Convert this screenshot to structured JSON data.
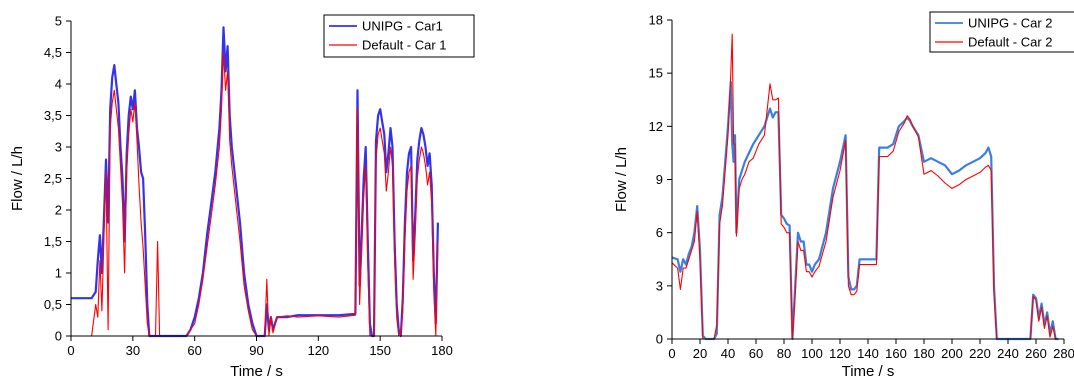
{
  "chart_data": [
    {
      "type": "line",
      "xlabel": "Time / s",
      "ylabel": "Flow / L/h",
      "xlim": [
        0,
        180
      ],
      "ylim": [
        0,
        5
      ],
      "x_ticks": [
        "0",
        "30",
        "60",
        "90",
        "120",
        "150",
        "180"
      ],
      "y_ticks": [
        "0",
        "0,5",
        "1",
        "1,5",
        "2",
        "2,5",
        "3",
        "3,5",
        "4",
        "4,5",
        "5"
      ],
      "grid": false,
      "legend_position": "top-right",
      "series": [
        {
          "name": "UNIPG - Car1",
          "color": "#3333ee",
          "x": [
            0,
            10,
            12,
            13,
            14,
            15,
            16,
            17,
            18,
            19,
            20,
            21,
            22,
            23,
            24,
            25,
            26,
            27,
            28,
            29,
            30,
            31,
            32,
            33,
            34,
            35,
            36,
            37,
            38,
            39,
            40,
            41,
            42,
            43,
            44,
            45,
            46,
            48,
            50,
            52,
            54,
            56,
            58,
            60,
            62,
            64,
            66,
            68,
            70,
            72,
            73,
            74,
            75,
            76,
            77,
            78,
            80,
            82,
            84,
            86,
            88,
            90,
            91,
            92,
            94,
            95,
            96,
            97,
            98,
            100,
            105,
            110,
            120,
            130,
            138,
            139,
            140,
            141,
            142,
            143,
            144,
            145,
            146,
            147,
            148,
            149,
            150,
            151,
            152,
            153,
            154,
            155,
            156,
            157,
            158,
            159,
            160,
            161,
            162,
            163,
            164,
            165,
            166,
            167,
            168,
            169,
            170,
            171,
            172,
            173,
            174,
            175,
            176,
            177,
            178
          ],
          "values": [
            0.6,
            0.6,
            0.7,
            1.2,
            1.6,
            1.0,
            1.9,
            2.8,
            1.8,
            3.6,
            4.1,
            4.3,
            4.0,
            3.7,
            3.0,
            2.5,
            1.5,
            2.9,
            3.5,
            3.8,
            3.6,
            3.9,
            3.3,
            3.0,
            2.6,
            2.5,
            1.6,
            0.5,
            0.0,
            0.0,
            0.0,
            0.0,
            0.0,
            0.0,
            0.0,
            0.0,
            0.0,
            0.0,
            0.0,
            0.0,
            0.0,
            0.0,
            0.1,
            0.3,
            0.6,
            1.0,
            1.6,
            2.1,
            2.6,
            3.3,
            3.9,
            4.9,
            4.2,
            4.6,
            3.5,
            3.0,
            2.4,
            1.8,
            1.0,
            0.5,
            0.2,
            0.0,
            0.0,
            0.0,
            0.0,
            0.5,
            0.1,
            0.3,
            0.1,
            0.3,
            0.3,
            0.33,
            0.33,
            0.33,
            0.35,
            3.9,
            0.8,
            1.6,
            2.5,
            3.0,
            1.5,
            0.2,
            0.0,
            0.0,
            3.1,
            3.5,
            3.6,
            3.4,
            3.2,
            2.6,
            2.9,
            3.3,
            3.0,
            1.5,
            0.5,
            0.1,
            0.0,
            0.6,
            1.8,
            2.6,
            2.9,
            3.0,
            1.2,
            1.9,
            2.8,
            3.1,
            3.3,
            3.2,
            3.0,
            2.7,
            2.9,
            2.4,
            1.0,
            0.2,
            1.8
          ]
        },
        {
          "name": "Default - Car 1",
          "color": "#ff0000",
          "x": [
            0,
            10,
            12,
            13,
            14,
            15,
            16,
            17,
            18,
            19,
            20,
            21,
            22,
            23,
            24,
            25,
            26,
            27,
            28,
            29,
            30,
            31,
            32,
            33,
            34,
            35,
            36,
            37,
            38,
            39,
            40,
            41,
            42,
            43,
            44,
            45,
            46,
            48,
            50,
            52,
            54,
            56,
            58,
            60,
            62,
            64,
            66,
            68,
            70,
            72,
            73,
            74,
            75,
            76,
            77,
            78,
            80,
            82,
            84,
            86,
            88,
            90,
            91,
            92,
            94,
            95,
            96,
            97,
            98,
            100,
            105,
            110,
            120,
            130,
            138,
            139,
            140,
            141,
            142,
            143,
            144,
            145,
            146,
            147,
            148,
            149,
            150,
            151,
            152,
            153,
            154,
            155,
            156,
            157,
            158,
            159,
            160,
            161,
            162,
            163,
            164,
            165,
            166,
            167,
            168,
            169,
            170,
            171,
            172,
            173,
            174,
            175,
            176,
            177,
            178
          ],
          "values": [
            0.0,
            0.0,
            0.5,
            0.3,
            1.2,
            0.4,
            1.6,
            2.6,
            0.1,
            3.3,
            3.7,
            3.9,
            3.6,
            3.3,
            2.7,
            2.1,
            1.0,
            2.6,
            3.2,
            3.6,
            3.4,
            3.7,
            3.1,
            2.4,
            1.8,
            1.4,
            0.8,
            0.2,
            0.0,
            0.0,
            0.0,
            0.0,
            1.5,
            0.0,
            0.0,
            0.0,
            0.0,
            0.0,
            0.0,
            0.0,
            0.0,
            0.0,
            0.1,
            0.2,
            0.5,
            0.9,
            1.4,
            1.9,
            2.4,
            3.0,
            3.6,
            4.5,
            3.9,
            4.2,
            3.1,
            2.7,
            2.1,
            1.5,
            0.8,
            0.4,
            0.1,
            0.0,
            0.0,
            0.0,
            0.0,
            0.9,
            0.0,
            0.3,
            0.05,
            0.3,
            0.32,
            0.3,
            0.32,
            0.3,
            0.33,
            3.6,
            0.5,
            1.3,
            2.2,
            2.7,
            1.1,
            0.0,
            0.0,
            0.0,
            2.8,
            3.2,
            3.3,
            3.1,
            2.9,
            2.3,
            2.6,
            3.0,
            2.7,
            1.2,
            0.3,
            0.0,
            0.0,
            0.4,
            1.5,
            2.3,
            2.6,
            2.7,
            0.9,
            1.6,
            2.5,
            2.8,
            3.0,
            2.9,
            2.7,
            2.4,
            2.6,
            2.1,
            0.7,
            0.0,
            1.5
          ]
        }
      ]
    },
    {
      "type": "line",
      "xlabel": "Time / s",
      "ylabel": "Flow / L/h",
      "xlim": [
        0,
        280
      ],
      "ylim": [
        0,
        18
      ],
      "x_ticks": [
        "0",
        "20",
        "40",
        "60",
        "80",
        "100",
        "120",
        "140",
        "160",
        "180",
        "200",
        "220",
        "240",
        "260",
        "280"
      ],
      "y_ticks": [
        "0",
        "3",
        "6",
        "9",
        "12",
        "15",
        "18"
      ],
      "grid": false,
      "legend_position": "top-right",
      "series": [
        {
          "name": "UNIPG - Car 2",
          "color": "#3a7fe0",
          "x": [
            0,
            4,
            6,
            8,
            10,
            12,
            14,
            16,
            18,
            20,
            22,
            24,
            26,
            28,
            30,
            32,
            34,
            36,
            38,
            40,
            42,
            43,
            44,
            45,
            46,
            48,
            50,
            52,
            55,
            58,
            62,
            66,
            70,
            72,
            74,
            76,
            78,
            80,
            82,
            84,
            86,
            88,
            90,
            92,
            94,
            96,
            98,
            100,
            102,
            105,
            110,
            115,
            120,
            124,
            126,
            128,
            130,
            132,
            134,
            138,
            142,
            146,
            148,
            150,
            154,
            158,
            162,
            166,
            168,
            170,
            172,
            176,
            180,
            185,
            190,
            195,
            200,
            205,
            210,
            215,
            220,
            224,
            226,
            228,
            230,
            232,
            234,
            236,
            240,
            244,
            248,
            252,
            254,
            256,
            258,
            260,
            262,
            264,
            266,
            268,
            270,
            272,
            274,
            276
          ],
          "values": [
            4.6,
            4.5,
            3.8,
            4.5,
            4.2,
            4.8,
            5.2,
            6.0,
            7.5,
            5.0,
            0.2,
            0.0,
            0.0,
            0.0,
            0.0,
            0.3,
            7.0,
            8.0,
            10.0,
            12.0,
            14.5,
            11.0,
            10.0,
            11.5,
            6.0,
            9.0,
            9.5,
            10.0,
            10.5,
            11.0,
            11.5,
            12.0,
            13.0,
            12.5,
            12.8,
            12.8,
            7.0,
            6.8,
            6.5,
            6.4,
            0.0,
            3.0,
            6.0,
            5.5,
            5.5,
            4.2,
            4.2,
            3.8,
            4.2,
            4.5,
            6.0,
            8.5,
            10.0,
            11.5,
            3.5,
            2.8,
            2.8,
            3.0,
            4.5,
            4.5,
            4.5,
            4.5,
            10.8,
            10.8,
            10.8,
            11.0,
            12.0,
            12.3,
            12.5,
            12.3,
            12.0,
            11.5,
            10.0,
            10.2,
            10.0,
            9.8,
            9.3,
            9.5,
            9.8,
            10.0,
            10.2,
            10.5,
            10.8,
            10.3,
            3.0,
            0.0,
            0.0,
            0.0,
            0.0,
            0.0,
            0.0,
            0.0,
            0.0,
            0.0,
            2.5,
            2.3,
            1.2,
            2.0,
            0.8,
            1.5,
            0.3,
            1.0,
            0.0,
            0.0
          ]
        },
        {
          "name": "Default - Car 2",
          "color": "#ff0000",
          "x": [
            0,
            4,
            6,
            8,
            10,
            12,
            14,
            16,
            18,
            20,
            22,
            24,
            26,
            28,
            30,
            32,
            34,
            36,
            38,
            40,
            42,
            43,
            44,
            45,
            46,
            48,
            50,
            52,
            55,
            58,
            62,
            66,
            70,
            72,
            74,
            76,
            78,
            80,
            82,
            84,
            86,
            88,
            90,
            92,
            94,
            96,
            98,
            100,
            102,
            105,
            110,
            115,
            120,
            124,
            126,
            128,
            130,
            132,
            134,
            138,
            142,
            146,
            148,
            150,
            154,
            158,
            162,
            166,
            168,
            170,
            172,
            176,
            180,
            185,
            190,
            195,
            200,
            205,
            210,
            215,
            220,
            224,
            226,
            228,
            230,
            232,
            234,
            236,
            240,
            244,
            248,
            252,
            254,
            256,
            258,
            260,
            262,
            264,
            266,
            268,
            270,
            272,
            274,
            276
          ],
          "values": [
            4.3,
            4.0,
            2.8,
            4.0,
            4.0,
            4.5,
            5.0,
            5.5,
            7.2,
            4.5,
            0.0,
            0.0,
            0.0,
            0.0,
            0.0,
            0.8,
            6.5,
            7.5,
            9.5,
            11.5,
            15.0,
            17.2,
            11.0,
            11.0,
            5.8,
            8.5,
            9.0,
            9.3,
            10.0,
            10.2,
            11.0,
            11.5,
            14.4,
            13.5,
            13.5,
            13.6,
            6.5,
            6.3,
            6.0,
            6.0,
            0.0,
            2.5,
            5.5,
            5.0,
            5.0,
            3.8,
            3.8,
            3.5,
            3.8,
            4.1,
            5.5,
            8.0,
            9.5,
            11.2,
            3.0,
            2.5,
            2.5,
            2.7,
            4.2,
            4.2,
            4.2,
            4.2,
            10.3,
            10.3,
            10.3,
            10.6,
            11.7,
            12.2,
            12.6,
            12.4,
            12.0,
            11.4,
            9.3,
            9.5,
            9.2,
            8.8,
            8.5,
            8.7,
            9.0,
            9.2,
            9.4,
            9.7,
            9.8,
            9.5,
            2.5,
            0.0,
            0.0,
            0.0,
            0.0,
            0.0,
            0.0,
            0.0,
            0.0,
            0.0,
            2.4,
            2.2,
            1.0,
            1.8,
            0.6,
            1.3,
            0.1,
            0.7,
            0.0,
            0.0
          ]
        }
      ]
    }
  ]
}
